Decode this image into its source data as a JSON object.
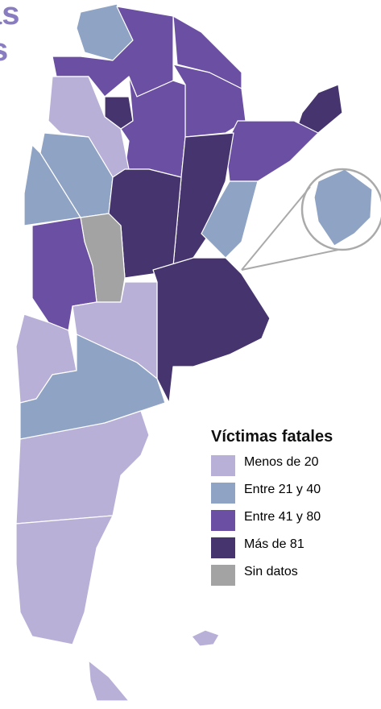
{
  "header": {
    "title_lines": [
      "as",
      "s"
    ]
  },
  "legend": {
    "title": "Víctimas fatales",
    "items": [
      {
        "label": "Menos de 20",
        "color": "#b9b0d8"
      },
      {
        "label": "Entre 21 y 40",
        "color": "#8fa3c4"
      },
      {
        "label": "Entre 41 y 80",
        "color": "#6a4fa3"
      },
      {
        "label": "Más de 81",
        "color": "#46346f"
      },
      {
        "label": "Sin datos",
        "color": "#a3a3a3"
      }
    ]
  }
}
